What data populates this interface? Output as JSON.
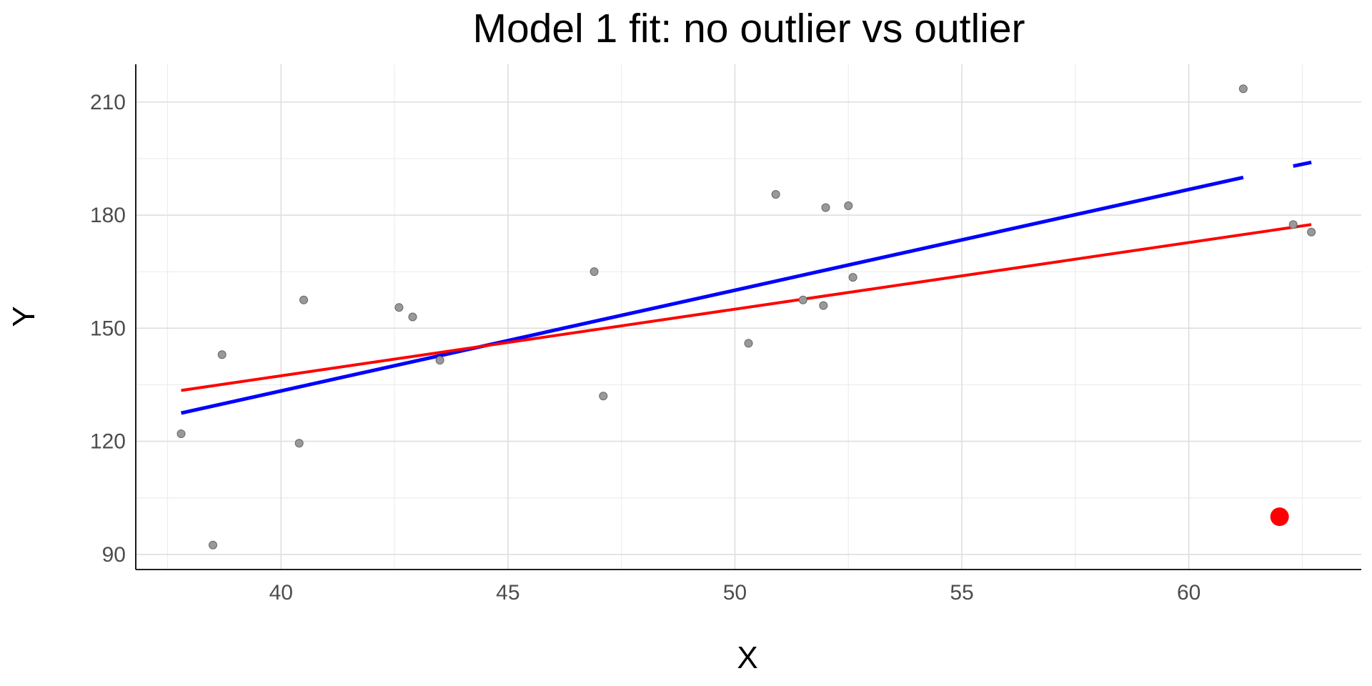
{
  "chart_data": {
    "type": "scatter",
    "title": "Model 1 fit: no outlier vs outlier",
    "xlabel": "X",
    "ylabel": "Y",
    "xlim": [
      36.8,
      63.8
    ],
    "ylim": [
      86,
      220
    ],
    "x_ticks": [
      40,
      45,
      50,
      55,
      60
    ],
    "y_ticks": [
      90,
      120,
      150,
      180,
      210
    ],
    "x_tick_labels": [
      "40",
      "45",
      "50",
      "55",
      "60"
    ],
    "y_tick_labels": [
      "90",
      "120",
      "150",
      "180",
      "210"
    ],
    "grid": true,
    "legend": "none",
    "colors": {
      "points": "#999999",
      "point_edge": "#666666",
      "outlier": "#ff0000",
      "fit_no_outlier": "#0000ff",
      "fit_with_outlier": "#ff0000"
    },
    "points": [
      {
        "x": 37.8,
        "y": 122
      },
      {
        "x": 38.5,
        "y": 92.5
      },
      {
        "x": 38.7,
        "y": 143
      },
      {
        "x": 40.4,
        "y": 119.5
      },
      {
        "x": 40.5,
        "y": 157.5
      },
      {
        "x": 42.6,
        "y": 155.5
      },
      {
        "x": 42.9,
        "y": 153
      },
      {
        "x": 43.5,
        "y": 141.5
      },
      {
        "x": 46.9,
        "y": 165
      },
      {
        "x": 47.1,
        "y": 132
      },
      {
        "x": 50.3,
        "y": 146
      },
      {
        "x": 50.9,
        "y": 185.5
      },
      {
        "x": 51.5,
        "y": 157.5
      },
      {
        "x": 51.95,
        "y": 156
      },
      {
        "x": 52.0,
        "y": 182
      },
      {
        "x": 52.5,
        "y": 182.5
      },
      {
        "x": 52.6,
        "y": 163.5
      },
      {
        "x": 61.2,
        "y": 213.5
      },
      {
        "x": 62.3,
        "y": 177.5
      },
      {
        "x": 62.7,
        "y": 175.5
      }
    ],
    "outlier": {
      "x": 62.0,
      "y": 100
    },
    "series": [
      {
        "segments": [
          [
            {
              "x": 37.8,
              "y": 127.5
            },
            {
              "x": 61.2,
              "y": 190
            }
          ],
          [
            {
              "x": 62.3,
              "y": 193
            },
            {
              "x": 62.7,
              "y": 194
            }
          ]
        ]
      },
      {
        "segments": [
          [
            {
              "x": 37.8,
              "y": 133.5
            },
            {
              "x": 62.7,
              "y": 177.5
            }
          ]
        ]
      }
    ]
  }
}
